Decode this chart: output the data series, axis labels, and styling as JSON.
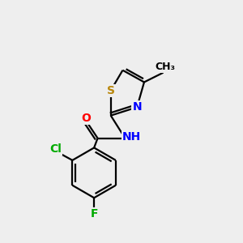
{
  "background_color": "#eeeeee",
  "bond_color": "#000000",
  "atom_colors": {
    "S": "#b8860b",
    "N": "#0000ff",
    "O": "#ff0000",
    "Cl": "#00aa00",
    "F": "#00aa00",
    "C": "#000000",
    "H": "#000000"
  },
  "lw": 1.6,
  "fontsize": 10,
  "small_fontsize": 9
}
